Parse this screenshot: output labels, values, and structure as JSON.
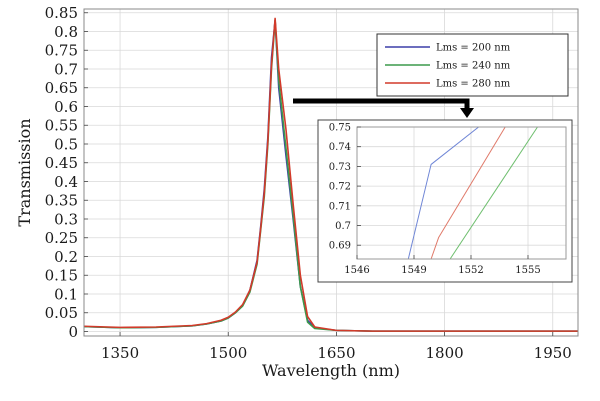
{
  "chart_data": [
    {
      "type": "line",
      "title": "",
      "xlabel": "Wavelength (nm)",
      "ylabel": "Transmission",
      "xlim": [
        1300,
        1985
      ],
      "ylim": [
        -0.012,
        0.86
      ],
      "xticks": [
        1350,
        1500,
        1650,
        1800,
        1950
      ],
      "yticks": [
        0,
        0.05,
        0.1,
        0.15,
        0.2,
        0.25,
        0.3,
        0.35,
        0.4,
        0.45,
        0.5,
        0.55,
        0.6,
        0.65,
        0.7,
        0.75,
        0.8,
        0.85
      ],
      "ytick_labels": [
        "0",
        "0.05",
        "0.1",
        "0.15",
        "0.2",
        "0.25",
        "0.3",
        "0.35",
        "0.4",
        "0.45",
        "0.5",
        "0.55",
        "0.6",
        "0.65",
        "0.7",
        "0.75",
        "0.8",
        "0.85"
      ],
      "grid": true,
      "legend": "top-right",
      "series": [
        {
          "name": "Lms = 200 nm",
          "color": "#3b3fa8",
          "x": [
            1300,
            1350,
            1400,
            1450,
            1470,
            1490,
            1500,
            1510,
            1520,
            1530,
            1540,
            1545,
            1550,
            1555,
            1560,
            1565,
            1570,
            1580,
            1590,
            1600,
            1610,
            1620,
            1650,
            1700,
            1800,
            1900,
            1985
          ],
          "y": [
            0.013,
            0.01,
            0.011,
            0.015,
            0.02,
            0.028,
            0.036,
            0.05,
            0.07,
            0.11,
            0.19,
            0.28,
            0.38,
            0.52,
            0.73,
            0.83,
            0.65,
            0.47,
            0.3,
            0.12,
            0.03,
            0.01,
            0.003,
            0.001,
            0.001,
            0.001,
            0.001
          ]
        },
        {
          "name": "Lms = 240 nm",
          "color": "#3c9a4b",
          "x": [
            1300,
            1350,
            1400,
            1450,
            1470,
            1490,
            1500,
            1510,
            1520,
            1530,
            1540,
            1545,
            1550,
            1555,
            1560,
            1565,
            1570,
            1580,
            1590,
            1600,
            1610,
            1620,
            1650,
            1700,
            1800,
            1900,
            1985
          ],
          "y": [
            0.013,
            0.01,
            0.011,
            0.015,
            0.02,
            0.028,
            0.036,
            0.05,
            0.068,
            0.105,
            0.18,
            0.27,
            0.36,
            0.5,
            0.7,
            0.83,
            0.67,
            0.49,
            0.31,
            0.12,
            0.025,
            0.008,
            0.003,
            0.001,
            0.001,
            0.001,
            0.001
          ]
        },
        {
          "name": "Lms = 280 nm",
          "color": "#d23a2a",
          "x": [
            1300,
            1350,
            1400,
            1450,
            1470,
            1490,
            1500,
            1510,
            1520,
            1530,
            1540,
            1545,
            1550,
            1555,
            1560,
            1565,
            1570,
            1580,
            1590,
            1600,
            1610,
            1620,
            1650,
            1700,
            1800,
            1900,
            1985
          ],
          "y": [
            0.014,
            0.011,
            0.012,
            0.016,
            0.021,
            0.03,
            0.038,
            0.052,
            0.072,
            0.11,
            0.185,
            0.275,
            0.37,
            0.51,
            0.71,
            0.835,
            0.7,
            0.54,
            0.34,
            0.15,
            0.04,
            0.012,
            0.003,
            0.001,
            0.001,
            0.001,
            0.001
          ]
        }
      ]
    },
    {
      "type": "line",
      "title": "",
      "xlabel": "",
      "ylabel": "",
      "xlim": [
        1546,
        1557
      ],
      "ylim": [
        0.683,
        0.75
      ],
      "xticks": [
        1546,
        1549,
        1552,
        1555
      ],
      "yticks": [
        0.69,
        0.7,
        0.71,
        0.72,
        0.73,
        0.74,
        0.75
      ],
      "ytick_labels": [
        "0.69",
        "0.7",
        "0.71",
        "0.72",
        "0.73",
        "0.74",
        "0.75"
      ],
      "grid": true,
      "series": [
        {
          "name": "Lms = 200 nm",
          "color": "#6f86d6",
          "x": [
            1548.7,
            1549.9,
            1552.4
          ],
          "y": [
            0.683,
            0.731,
            0.75
          ]
        },
        {
          "name": "Lms = 240 nm",
          "color": "#6fbf6f",
          "x": [
            1550.9,
            1555.5
          ],
          "y": [
            0.683,
            0.75
          ]
        },
        {
          "name": "Lms = 280 nm",
          "color": "#e07a6a",
          "x": [
            1549.9,
            1550.3,
            1553.8
          ],
          "y": [
            0.683,
            0.694,
            0.75
          ]
        }
      ]
    }
  ]
}
